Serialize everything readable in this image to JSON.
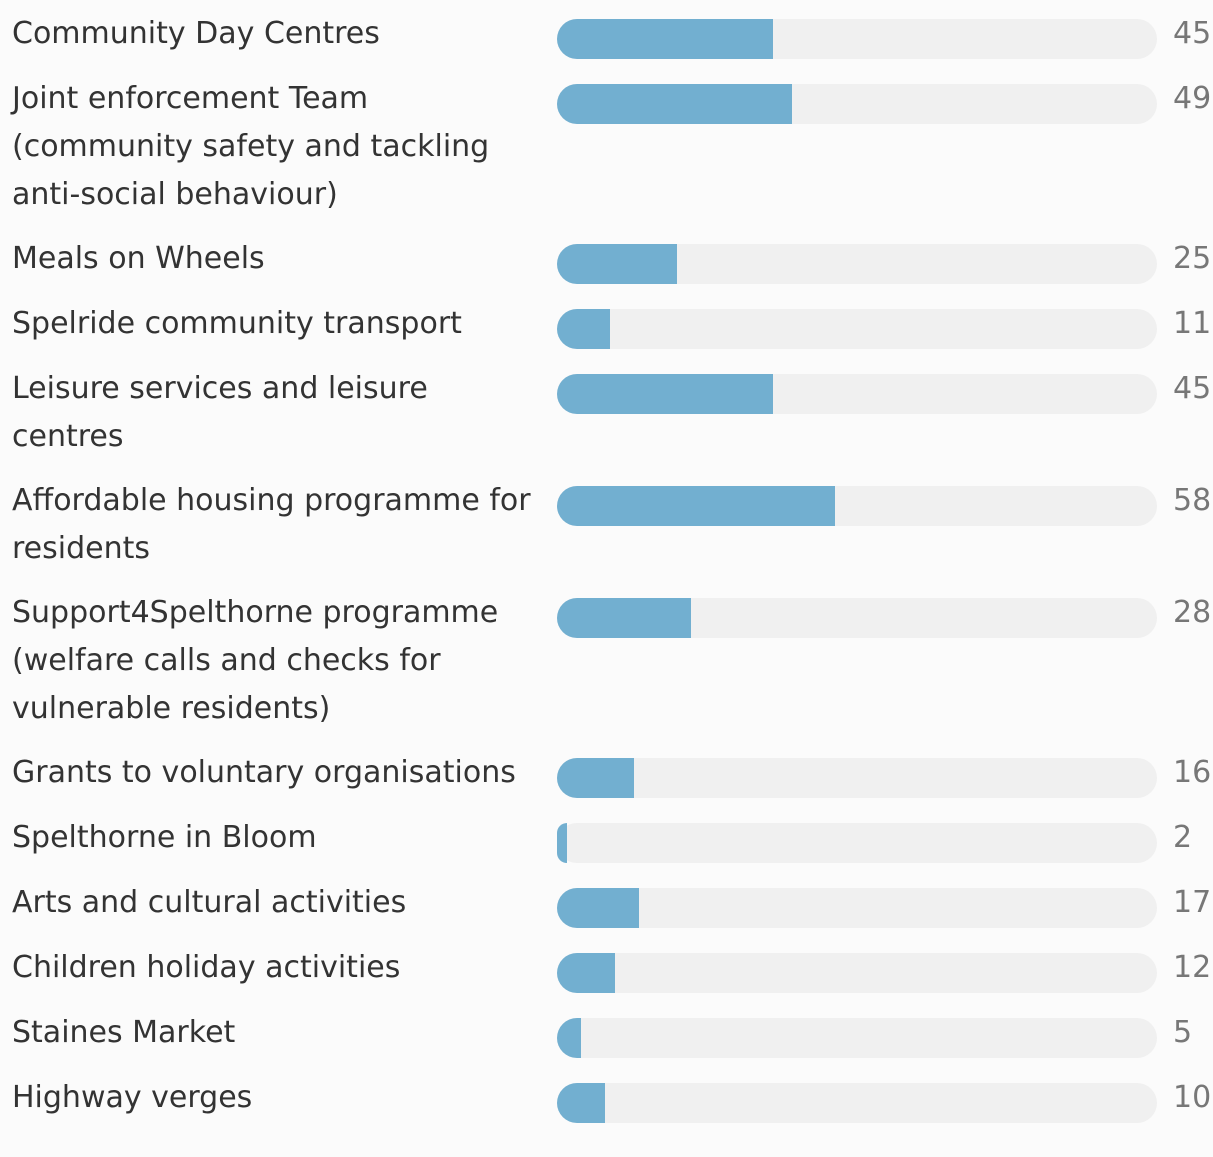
{
  "chart_data": {
    "type": "bar",
    "orientation": "horizontal",
    "categories": [
      "Community Day Centres",
      "Joint enforcement Team (community safety and tackling anti-social behaviour)",
      "Meals on Wheels",
      "Spelride community transport",
      "Leisure services and leisure centres",
      "Affordable housing programme for residents",
      "Support4Spelthorne programme (welfare calls and checks for vulnerable residents)",
      "Grants to voluntary organisations",
      "Spelthorne in Bloom",
      "Arts and cultural activities",
      "Children holiday activities",
      "Staines Market",
      "Highway verges"
    ],
    "values": [
      45,
      49,
      25,
      11,
      45,
      58,
      28,
      16,
      2,
      17,
      12,
      5,
      10
    ],
    "color": "#72afd0",
    "xlim": [
      0,
      125
    ]
  }
}
